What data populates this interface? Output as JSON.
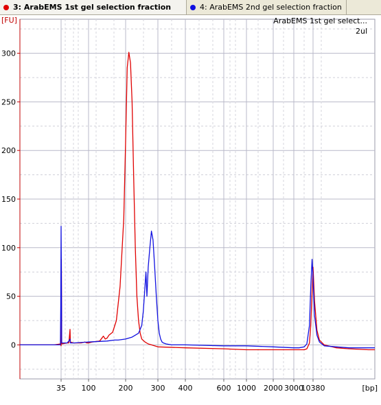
{
  "tabs": [
    {
      "number": "3:",
      "label": "ArabEMS 1st gel selection fraction",
      "color": "#e00000",
      "active": true
    },
    {
      "number": "4:",
      "label": "ArabEMS 2nd gel selection fraction",
      "color": "#1010e0",
      "active": false
    }
  ],
  "chart_data": {
    "type": "line",
    "title": "ArabEMS 1st gel select...",
    "subtitle": "2ul",
    "ylabel": "[FU]",
    "xlabel": "[bp]",
    "xscale": "electropherogram (non-linear)",
    "ylim": [
      -35,
      335
    ],
    "yticks": [
      0,
      50,
      100,
      150,
      200,
      250,
      300
    ],
    "xticks": [
      "35",
      "100",
      "200",
      "300",
      "400",
      "600",
      "1000",
      "2000",
      "3000",
      "10380"
    ],
    "grid": true,
    "colors": {
      "series1": "#e00000",
      "series2": "#1010e0",
      "grid": "#b8b8c8",
      "axis": "#c00000"
    },
    "series": [
      {
        "number": 3,
        "color": "#e00000",
        "x": [
          "0",
          "25",
          "34",
          "35",
          "35.5",
          "36",
          "45",
          "48",
          "50",
          "51",
          "60",
          "80",
          "90",
          "95",
          "100",
          "110",
          "130",
          "140",
          "145",
          "150",
          "155",
          "165",
          "175",
          "185",
          "195",
          "200",
          "205",
          "210",
          "215",
          "220",
          "225",
          "230",
          "235",
          "240",
          "245",
          "250",
          "260",
          "270",
          "280",
          "300",
          "400",
          "600",
          "1000",
          "2000",
          "3000",
          "5000",
          "7000",
          "8000",
          "9000",
          "9500",
          "10000",
          "10380",
          "11000",
          "12000",
          "13000",
          "15000",
          "20000",
          "30000",
          "45000",
          "50000"
        ],
        "y": [
          0,
          0,
          1,
          -1,
          88,
          1,
          2,
          2,
          16,
          3,
          2,
          2,
          3,
          2,
          2,
          3,
          4,
          9,
          6,
          7,
          10,
          13,
          25,
          60,
          130,
          210,
          285,
          301,
          290,
          250,
          170,
          100,
          50,
          25,
          12,
          6,
          3,
          1,
          0,
          -2,
          -3,
          -4,
          -5,
          -5,
          -5,
          -5,
          -5,
          -4,
          2,
          20,
          55,
          80,
          45,
          15,
          5,
          0,
          -3,
          -4,
          -5,
          -5
        ]
      },
      {
        "number": 4,
        "color": "#1010e0",
        "x": [
          "0",
          "25",
          "34",
          "34.5",
          "35",
          "35.5",
          "36",
          "45",
          "48",
          "50",
          "51",
          "60",
          "100",
          "150",
          "170",
          "180",
          "200",
          "220",
          "240",
          "250",
          "255",
          "260",
          "263",
          "266",
          "270",
          "275",
          "280",
          "285",
          "290",
          "295",
          "300",
          "305",
          "310",
          "315",
          "320",
          "330",
          "350",
          "400",
          "600",
          "1000",
          "2000",
          "3000",
          "5000",
          "7000",
          "8000",
          "9000",
          "9500",
          "10000",
          "10380",
          "11000",
          "12000",
          "13000",
          "15000",
          "20000",
          "30000",
          "45000",
          "50000"
        ],
        "y": [
          0,
          0,
          0,
          40,
          122,
          75,
          2,
          2,
          4,
          6,
          2,
          2,
          3,
          4,
          5,
          5,
          6,
          8,
          12,
          20,
          35,
          60,
          75,
          50,
          80,
          100,
          117,
          108,
          80,
          50,
          25,
          12,
          6,
          3,
          2,
          1,
          0,
          0,
          -1,
          -1,
          -2,
          -3,
          -3,
          -2,
          1,
          20,
          60,
          88,
          70,
          30,
          10,
          3,
          -1,
          -2,
          -3,
          -3,
          -3
        ]
      }
    ]
  }
}
